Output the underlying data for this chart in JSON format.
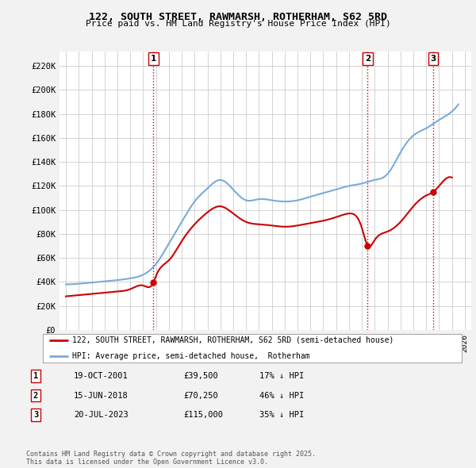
{
  "title": "122, SOUTH STREET, RAWMARSH, ROTHERHAM, S62 5RD",
  "subtitle": "Price paid vs. HM Land Registry's House Price Index (HPI)",
  "ylabel_ticks": [
    "£0",
    "£20K",
    "£40K",
    "£60K",
    "£80K",
    "£100K",
    "£120K",
    "£140K",
    "£160K",
    "£180K",
    "£200K",
    "£220K"
  ],
  "ytick_values": [
    0,
    20000,
    40000,
    60000,
    80000,
    100000,
    120000,
    140000,
    160000,
    180000,
    200000,
    220000
  ],
  "ylim": [
    0,
    232000
  ],
  "xlim_start": 1994.5,
  "xlim_end": 2026.5,
  "hpi_color": "#7aabdb",
  "property_color": "#cc0000",
  "vline_color": "#cc0000",
  "grid_color": "#cccccc",
  "background_color": "#f2f2f2",
  "plot_bg_color": "#ffffff",
  "legend_line1": "122, SOUTH STREET, RAWMARSH, ROTHERHAM, S62 5RD (semi-detached house)",
  "legend_line2": "HPI: Average price, semi-detached house,  Rotherham",
  "transaction1_label": "1",
  "transaction1_date": "19-OCT-2001",
  "transaction1_price": "£39,500",
  "transaction1_hpi": "17% ↓ HPI",
  "transaction1_x": 2001.8,
  "transaction1_y": 39500,
  "transaction2_label": "2",
  "transaction2_date": "15-JUN-2018",
  "transaction2_price": "£70,250",
  "transaction2_hpi": "46% ↓ HPI",
  "transaction2_x": 2018.45,
  "transaction2_y": 70250,
  "transaction3_label": "3",
  "transaction3_date": "20-JUL-2023",
  "transaction3_price": "£115,000",
  "transaction3_hpi": "35% ↓ HPI",
  "transaction3_x": 2023.55,
  "transaction3_y": 115000,
  "footer": "Contains HM Land Registry data © Crown copyright and database right 2025.\nThis data is licensed under the Open Government Licence v3.0.",
  "hpi_years": [
    1995,
    1996,
    1997,
    1998,
    1999,
    2000,
    2001,
    2002,
    2003,
    2004,
    2005,
    2006,
    2007,
    2008,
    2009,
    2010,
    2011,
    2012,
    2013,
    2014,
    2015,
    2016,
    2017,
    2018,
    2019,
    2020,
    2021,
    2022,
    2023,
    2024,
    2025,
    2025.5
  ],
  "hpi_values": [
    38000,
    38500,
    39500,
    40500,
    41500,
    43000,
    46000,
    55000,
    72000,
    90000,
    107000,
    118000,
    125000,
    117000,
    108000,
    109000,
    108000,
    107000,
    108000,
    111000,
    114000,
    117000,
    120000,
    122000,
    125000,
    130000,
    148000,
    162000,
    168000,
    175000,
    182000,
    188000
  ],
  "prop_years": [
    1995,
    1996,
    1997,
    1998,
    1999,
    2000,
    2001,
    2001.8,
    2002,
    2003,
    2004,
    2005,
    2006,
    2007,
    2008,
    2009,
    2010,
    2011,
    2012,
    2013,
    2014,
    2015,
    2016,
    2017,
    2018,
    2018.45,
    2019,
    2020,
    2021,
    2022,
    2023,
    2023.55,
    2024,
    2025
  ],
  "prop_values": [
    28000,
    29000,
    30000,
    31000,
    32000,
    34000,
    37000,
    39500,
    45000,
    58000,
    74000,
    88000,
    98000,
    103000,
    97000,
    90000,
    88000,
    87000,
    86000,
    87000,
    89000,
    91000,
    94000,
    97000,
    85000,
    70250,
    75000,
    82000,
    90000,
    103000,
    112000,
    115000,
    120000,
    127000
  ]
}
